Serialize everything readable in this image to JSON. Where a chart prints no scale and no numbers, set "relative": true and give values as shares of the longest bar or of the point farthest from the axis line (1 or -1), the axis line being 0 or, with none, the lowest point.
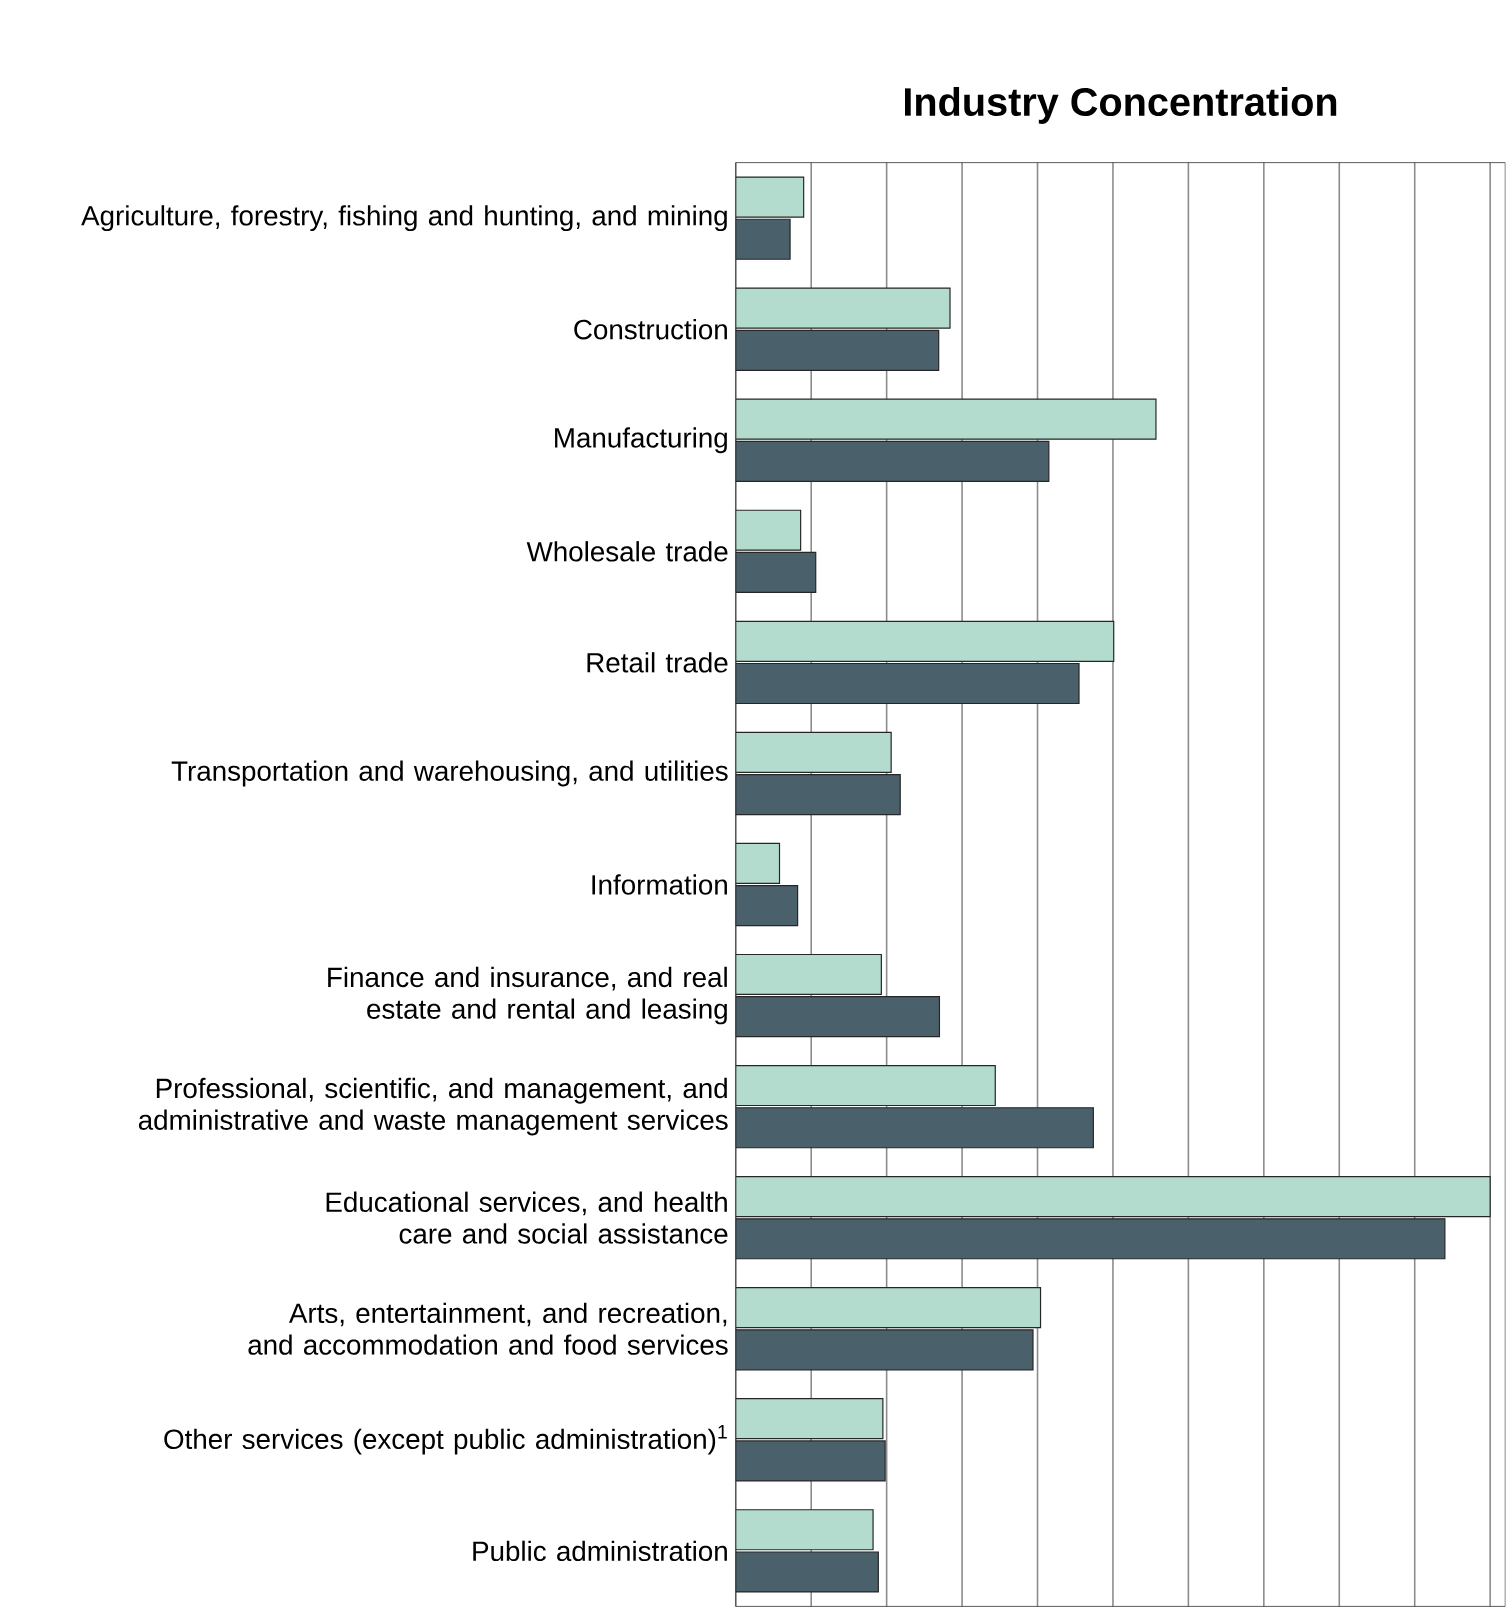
{
  "chart_data": {
    "type": "bar",
    "orientation": "horizontal",
    "relative": true,
    "grid": "x",
    "title": "Industry Concentration",
    "categories": [
      "Agriculture, forestry, fishing and hunting, and mining",
      "Construction",
      "Manufacturing",
      "Wholesale trade",
      "Retail trade",
      "Transportation and warehousing, and utilities",
      "Information",
      "Finance and insurance, and real estate and rental and leasing",
      "Professional, scientific, and management, and administrative and waste management services",
      "Educational services, and health care and social assistance",
      "Arts, entertainment, and recreation, and accommodation and food services",
      "Other services (except public administration)$^{1}$",
      "Public administration"
    ],
    "series": [
      {
        "color": "#b3dccf",
        "values": [
          0.09,
          0.284,
          0.557,
          0.086,
          0.501,
          0.206,
          0.058,
          0.193,
          0.344,
          1.0,
          0.404,
          0.195,
          0.182
        ]
      },
      {
        "color": "#4a616c",
        "values": [
          0.072,
          0.269,
          0.415,
          0.106,
          0.455,
          0.218,
          0.082,
          0.27,
          0.474,
          0.94,
          0.394,
          0.198,
          0.189
        ]
      }
    ]
  }
}
